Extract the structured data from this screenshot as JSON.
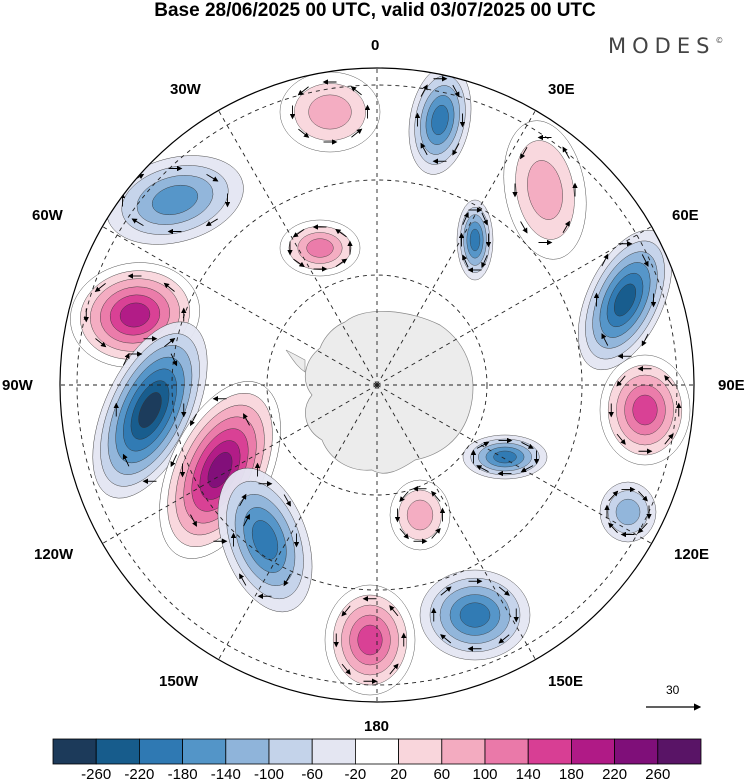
{
  "title": "Base 28/06/2025 00 UTC, valid 03/07/2025 00 UTC",
  "brand": {
    "name": "MODES",
    "mark": "©"
  },
  "lon_labels": {
    "n0": "0",
    "e30": "30E",
    "e60": "60E",
    "e90": "90E",
    "e120": "120E",
    "e150": "150E",
    "s180": "180",
    "w150": "150W",
    "w120": "120W",
    "w90": "90W",
    "w60": "60W",
    "w30": "30W"
  },
  "reference_vector": {
    "label": "30"
  },
  "colorbar": {
    "labels": [
      "-260",
      "-220",
      "-180",
      "-140",
      "-100",
      "-60",
      "-20",
      "20",
      "60",
      "100",
      "140",
      "180",
      "220",
      "260"
    ],
    "colors": [
      "#1c3a5a",
      "#175c8c",
      "#2f79b3",
      "#5395c8",
      "#8fb4da",
      "#c4d3ea",
      "#e4e6f2",
      "#ffffff",
      "#f9d6dc",
      "#f3abc0",
      "#ea79a9",
      "#d83e94",
      "#b01a86",
      "#7f0f79",
      "#591466"
    ]
  },
  "map": {
    "projection": "south polar stereographic",
    "anomaly_centres": [
      {
        "name": "pos-atlantic",
        "value": 100,
        "color": "#f3abc0"
      },
      {
        "name": "neg-30w",
        "value": -140,
        "color": "#5395c8"
      },
      {
        "name": "neg-60w",
        "value": -180,
        "color": "#2f79b3"
      },
      {
        "name": "pos-75w",
        "value": 220,
        "color": "#b01a86"
      },
      {
        "name": "neg-100w",
        "value": -260,
        "color": "#1c3a5a"
      },
      {
        "name": "pos-115w",
        "value": 260,
        "color": "#591466"
      },
      {
        "name": "neg-140w",
        "value": -180,
        "color": "#2f79b3"
      },
      {
        "name": "pos-175e",
        "value": 180,
        "color": "#b01a86"
      },
      {
        "name": "neg-150e",
        "value": -180,
        "color": "#2f79b3"
      },
      {
        "name": "neg-120e",
        "value": -100,
        "color": "#8fb4da"
      },
      {
        "name": "pos-90e",
        "value": 180,
        "color": "#d83e94"
      },
      {
        "name": "neg-60e",
        "value": -220,
        "color": "#175c8c"
      },
      {
        "name": "pos-30e",
        "value": 100,
        "color": "#f3abc0"
      },
      {
        "name": "neg-10e",
        "value": -180,
        "color": "#2f79b3"
      },
      {
        "name": "pos-inner-30w",
        "value": 140,
        "color": "#ea79a9"
      },
      {
        "name": "neg-inner-130e",
        "value": -180,
        "color": "#2f79b3"
      },
      {
        "name": "pos-inner-160e",
        "value": 100,
        "color": "#f3abc0"
      }
    ]
  }
}
